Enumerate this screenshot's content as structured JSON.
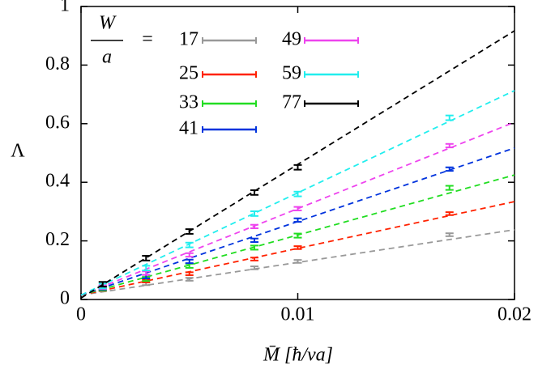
{
  "chart_data": {
    "type": "errorbar",
    "xlabel": "M̄ [ħ/va]",
    "ylabel": "Λ",
    "xlim": [
      0,
      0.02
    ],
    "ylim": [
      0,
      1
    ],
    "xticks": [
      0,
      0.01,
      0.02
    ],
    "yticks": [
      0,
      0.2,
      0.4,
      0.6,
      0.8,
      1
    ],
    "legend_title": {
      "numerator": "W",
      "denominator": "a",
      "relation": "="
    },
    "x": [
      0.001,
      0.003,
      0.005,
      0.008,
      0.01,
      0.017
    ],
    "fit_x": [
      0,
      0.02
    ],
    "series": [
      {
        "name": "17",
        "color": "#999999",
        "values": [
          0.033,
          0.054,
          0.069,
          0.108,
          0.13,
          0.221
        ],
        "error": 0.005,
        "fit": [
          0.015,
          0.238
        ]
      },
      {
        "name": "25",
        "color": "#ff2200",
        "values": [
          0.035,
          0.063,
          0.088,
          0.138,
          0.177,
          0.293
        ],
        "error": 0.005,
        "fit": [
          0.015,
          0.334
        ]
      },
      {
        "name": "33",
        "color": "#22dd22",
        "values": [
          0.038,
          0.07,
          0.115,
          0.177,
          0.218,
          0.381
        ],
        "error": 0.007,
        "fit": [
          0.015,
          0.425
        ]
      },
      {
        "name": "41",
        "color": "#0033dd",
        "values": [
          0.04,
          0.078,
          0.13,
          0.202,
          0.271,
          0.445
        ],
        "error": 0.006,
        "fit": [
          0.015,
          0.517
        ]
      },
      {
        "name": "49",
        "color": "#ee44ee",
        "values": [
          0.042,
          0.09,
          0.152,
          0.249,
          0.31,
          0.525
        ],
        "error": 0.006,
        "fit": [
          0.015,
          0.605
        ]
      },
      {
        "name": "59",
        "color": "#22eeee",
        "values": [
          0.046,
          0.107,
          0.186,
          0.293,
          0.36,
          0.62
        ],
        "error": 0.008,
        "fit": [
          0.015,
          0.713
        ]
      },
      {
        "name": "77",
        "color": "#000000",
        "values": [
          0.052,
          0.141,
          0.232,
          0.365,
          0.451,
          null
        ],
        "error": 0.008,
        "fit": [
          0.005,
          0.917
        ]
      }
    ]
  }
}
